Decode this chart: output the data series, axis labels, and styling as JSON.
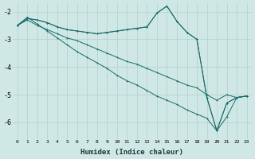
{
  "xlabel": "Humidex (Indice chaleur)",
  "background_color": "#cfe8e5",
  "grid_color": "#b0d0cc",
  "line_color": "#1a6b6b",
  "xlim": [
    -0.5,
    23.5
  ],
  "ylim": [
    -6.6,
    -1.7
  ],
  "xticks": [
    0,
    1,
    2,
    3,
    4,
    5,
    6,
    7,
    8,
    9,
    10,
    11,
    12,
    13,
    14,
    15,
    16,
    17,
    18,
    19,
    20,
    21,
    22,
    23
  ],
  "yticks": [
    -6,
    -5,
    -4,
    -3,
    -2
  ],
  "line1": [
    -2.5,
    -2.25,
    -2.3,
    -2.4,
    -2.55,
    -2.65,
    -2.7,
    -2.75,
    -2.8,
    -2.75,
    -2.7,
    -2.65,
    -2.6,
    -2.55,
    -2.05,
    -1.8,
    -2.35,
    -2.75,
    -3.0,
    -5.1,
    -6.3,
    -5.3,
    -5.1,
    -5.05
  ],
  "line2": [
    -2.5,
    -2.25,
    -2.3,
    -2.4,
    -2.55,
    -2.65,
    -2.7,
    -2.75,
    -2.8,
    -2.75,
    -2.7,
    -2.65,
    -2.6,
    -2.55,
    -2.05,
    -1.8,
    -2.35,
    -2.75,
    -3.0,
    -5.1,
    -6.3,
    -5.3,
    -5.1,
    -5.05
  ],
  "line3": [
    -2.5,
    -2.3,
    -2.5,
    -2.65,
    -2.8,
    -2.95,
    -3.05,
    -3.2,
    -3.35,
    -3.5,
    -3.65,
    -3.8,
    -3.9,
    -4.05,
    -4.2,
    -4.35,
    -4.5,
    -4.65,
    -4.75,
    -5.0,
    -5.2,
    -5.0,
    -5.1,
    -5.05
  ],
  "line4": [
    -2.5,
    -2.2,
    -2.45,
    -2.7,
    -2.95,
    -3.2,
    -3.45,
    -3.65,
    -3.85,
    -4.05,
    -4.3,
    -4.5,
    -4.65,
    -4.85,
    -5.05,
    -5.2,
    -5.35,
    -5.55,
    -5.7,
    -5.85,
    -6.3,
    -5.8,
    -5.1,
    -5.05
  ]
}
